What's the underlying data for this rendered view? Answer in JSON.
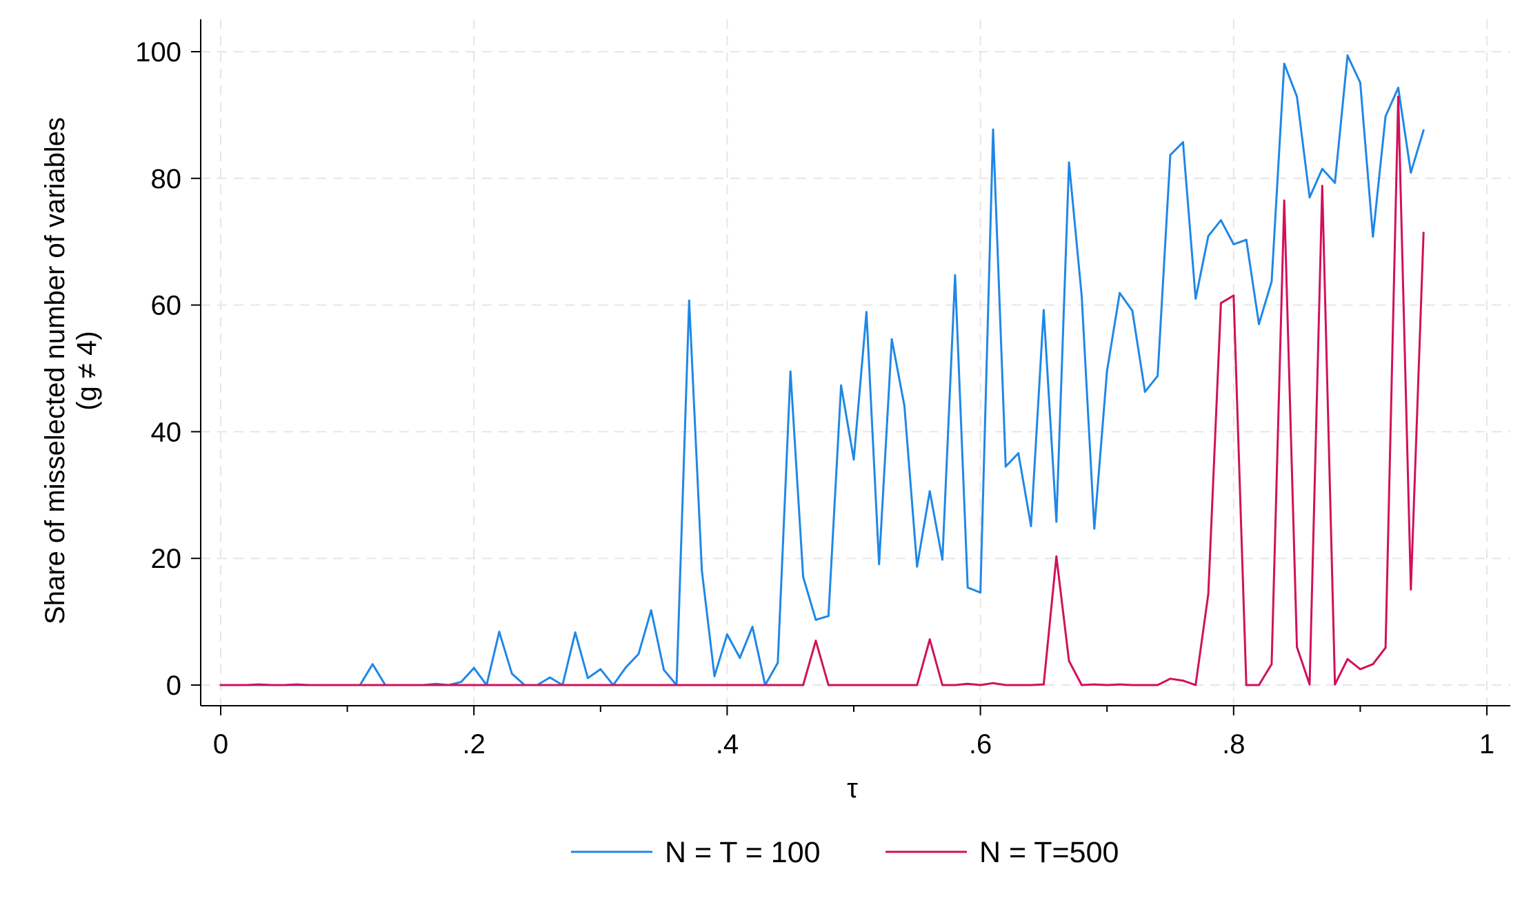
{
  "chart_data": {
    "type": "line",
    "title": "",
    "xlabel": "τ",
    "ylabel": [
      "Share of misselected number of variables",
      "(g ≠ 4)"
    ],
    "xlim": [
      0,
      1
    ],
    "ylim": [
      0,
      100
    ],
    "grid": true,
    "legend_position": "bottom",
    "x_ticks": [
      0,
      0.2,
      0.4,
      0.6,
      0.8,
      1
    ],
    "x_tick_labels": [
      "0",
      ".2",
      ".4",
      ".6",
      ".8",
      "1"
    ],
    "y_ticks": [
      0,
      20,
      40,
      60,
      80,
      100
    ],
    "y_tick_labels": [
      "0",
      "20",
      "40",
      "60",
      "80",
      "100"
    ],
    "x": [
      0,
      0.01,
      0.02,
      0.03,
      0.04,
      0.05,
      0.06,
      0.07,
      0.08,
      0.09,
      0.1,
      0.11,
      0.12,
      0.13,
      0.14,
      0.15,
      0.16,
      0.17,
      0.18,
      0.19,
      0.2,
      0.21,
      0.22,
      0.23,
      0.24,
      0.25,
      0.26,
      0.27,
      0.28,
      0.29,
      0.3,
      0.31,
      0.32,
      0.33,
      0.34,
      0.35,
      0.36,
      0.37,
      0.38,
      0.39,
      0.4,
      0.41,
      0.42,
      0.43,
      0.44,
      0.45,
      0.46,
      0.47,
      0.48,
      0.49,
      0.5,
      0.51,
      0.52,
      0.53,
      0.54,
      0.55,
      0.56,
      0.57,
      0.58,
      0.59,
      0.6,
      0.61,
      0.62,
      0.63,
      0.64,
      0.65,
      0.66,
      0.67,
      0.68,
      0.69,
      0.7,
      0.71,
      0.72,
      0.73,
      0.74,
      0.75,
      0.76,
      0.77,
      0.78,
      0.79,
      0.8,
      0.81,
      0.82,
      0.83,
      0.84,
      0.85,
      0.86,
      0.87,
      0.88,
      0.89,
      0.9,
      0.91,
      0.92,
      0.93,
      0.94,
      0.95
    ],
    "series": [
      {
        "name": "N = T = 100",
        "color": "#1f87e6",
        "values": [
          0,
          0,
          0,
          0,
          0,
          0,
          0,
          0,
          0,
          0,
          0,
          0,
          3.3,
          0,
          0,
          0,
          0,
          0.2,
          0,
          0.5,
          2.7,
          0,
          8.4,
          1.8,
          0,
          0,
          1.2,
          0,
          8.3,
          1.1,
          2.5,
          0,
          2.8,
          4.9,
          11.8,
          2.4,
          0,
          60.7,
          18.1,
          1.4,
          8.0,
          4.3,
          9.2,
          0,
          3.5,
          49.5,
          17.1,
          10.3,
          10.9,
          47.3,
          35.6,
          58.9,
          19.1,
          54.6,
          44.1,
          18.7,
          30.6,
          19.8,
          64.7,
          15.4,
          14.6,
          87.7,
          34.5,
          36.6,
          25.1,
          59.2,
          25.8,
          82.5,
          61.4,
          24.7,
          49.6,
          61.9,
          59.1,
          46.3,
          48.8,
          83.7,
          85.7,
          61.0,
          70.9,
          73.4,
          69.6,
          70.3,
          57.0,
          63.7,
          98.1,
          92.9,
          77.0,
          81.5,
          79.3,
          99.4,
          95.1,
          70.8,
          89.8,
          94.3,
          80.9,
          87.6
        ]
      },
      {
        "name": "N = T=500",
        "color": "#d1105a",
        "values": [
          0,
          0,
          0,
          0.1,
          0,
          0,
          0.1,
          0,
          0,
          0,
          0,
          0,
          0,
          0,
          0,
          0,
          0,
          0,
          0,
          0,
          0,
          0,
          0,
          0,
          0,
          0,
          0,
          0,
          0,
          0,
          0,
          0,
          0,
          0,
          0,
          0,
          0,
          0,
          0,
          0,
          0,
          0,
          0,
          0,
          0,
          0,
          0,
          7.0,
          0,
          0,
          0,
          0,
          0,
          0,
          0,
          0,
          7.2,
          0,
          0,
          0.2,
          0,
          0.3,
          0,
          0,
          0,
          0.1,
          20.3,
          3.8,
          0,
          0.1,
          0,
          0.1,
          0,
          0,
          0,
          1.0,
          0.7,
          0,
          14.4,
          60.3,
          61.5,
          0,
          0,
          3.3,
          76.5,
          6.0,
          0.1,
          78.8,
          0.1,
          4.1,
          2.5,
          3.3,
          5.9,
          92.9,
          15.1,
          71.4
        ]
      }
    ]
  }
}
